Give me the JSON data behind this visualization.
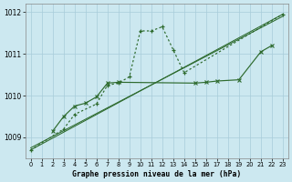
{
  "x": [
    0,
    1,
    2,
    3,
    4,
    5,
    6,
    7,
    8,
    9,
    10,
    11,
    12,
    13,
    14,
    15,
    16,
    17,
    18,
    19,
    20,
    21,
    22,
    23
  ],
  "line1_x": [
    0,
    3,
    4,
    6,
    7,
    8,
    9,
    10,
    11,
    12,
    13,
    14,
    23
  ],
  "line1_y": [
    1008.7,
    1009.2,
    1009.55,
    1009.8,
    1010.25,
    1010.3,
    1010.45,
    1011.55,
    1011.55,
    1011.65,
    1011.1,
    1010.55,
    1011.95
  ],
  "line2_x": [
    2,
    3,
    4,
    5,
    6,
    7,
    8,
    15,
    16,
    17,
    19,
    21,
    22
  ],
  "line2_y": [
    1009.15,
    1009.5,
    1009.75,
    1009.82,
    1009.97,
    1010.3,
    1010.32,
    1010.3,
    1010.32,
    1010.35,
    1010.38,
    1011.05,
    1011.2
  ],
  "line3_x": [
    0,
    23
  ],
  "line3_y": [
    1008.7,
    1011.95
  ],
  "line4_x": [
    0,
    23
  ],
  "line4_y": [
    1008.75,
    1011.9
  ],
  "line_color": "#2d6a2d",
  "bg_color": "#cce8f0",
  "grid_color": "#a8ccda",
  "xlabel": "Graphe pression niveau de la mer (hPa)",
  "ylim": [
    1008.5,
    1012.2
  ],
  "xlim": [
    -0.5,
    23.5
  ],
  "yticks": [
    1009,
    1010,
    1011,
    1012
  ],
  "xticks": [
    0,
    1,
    2,
    3,
    4,
    5,
    6,
    7,
    8,
    9,
    10,
    11,
    12,
    13,
    14,
    15,
    16,
    17,
    18,
    19,
    20,
    21,
    22,
    23
  ]
}
